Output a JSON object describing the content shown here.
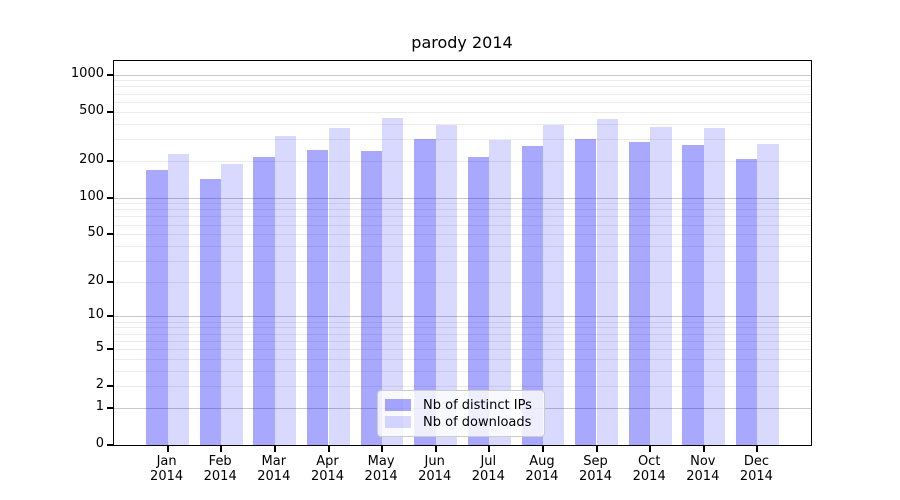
{
  "figure": {
    "background": "#ffffff",
    "axis_color": "#000000",
    "grid_major_color": "#c8c8c8",
    "grid_minor_color": "#ebebeb"
  },
  "chart_data": {
    "type": "bar",
    "title": "parody 2014",
    "xlabel": "",
    "ylabel": "",
    "categories": [
      "Jan 2014",
      "Feb 2014",
      "Mar 2014",
      "Apr 2014",
      "May 2014",
      "Jun 2014",
      "Jul 2014",
      "Aug 2014",
      "Sep 2014",
      "Oct 2014",
      "Nov 2014",
      "Dec 2014"
    ],
    "x_tick_months": [
      "Jan",
      "Feb",
      "Mar",
      "Apr",
      "May",
      "Jun",
      "Jul",
      "Aug",
      "Sep",
      "Oct",
      "Nov",
      "Dec"
    ],
    "x_tick_year": "2014",
    "series": [
      {
        "name": "Nb of distinct IPs",
        "fill": "rgba(0,0,255,0.34)",
        "hex_on_white": "#a8a8ff",
        "values": [
          168,
          143,
          215,
          243,
          240,
          298,
          215,
          263,
          298,
          285,
          266,
          207
        ]
      },
      {
        "name": "Nb of downloads",
        "fill": "rgba(0,0,255,0.15)",
        "hex_on_white": "#d9d9ff",
        "values": [
          228,
          187,
          317,
          366,
          442,
          390,
          292,
          390,
          433,
          375,
          370,
          274
        ]
      }
    ],
    "yscale": "symlog-log1p",
    "y_ticks": [
      1000,
      500,
      200,
      100,
      50,
      20,
      10,
      5,
      2,
      1,
      0
    ],
    "y_minor_ticks": [
      2,
      3,
      4,
      5,
      6,
      7,
      8,
      9,
      20,
      30,
      40,
      50,
      60,
      70,
      80,
      90,
      200,
      300,
      400,
      500,
      600,
      700,
      800,
      900
    ],
    "ylim": [
      0,
      1286
    ],
    "grid": "on",
    "legend_position": "lower center"
  }
}
